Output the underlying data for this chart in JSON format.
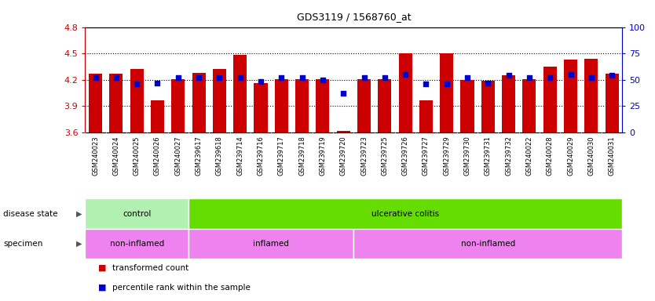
{
  "title": "GDS3119 / 1568760_at",
  "samples": [
    "GSM240023",
    "GSM240024",
    "GSM240025",
    "GSM240026",
    "GSM240027",
    "GSM239617",
    "GSM239618",
    "GSM239714",
    "GSM239716",
    "GSM239717",
    "GSM239718",
    "GSM239719",
    "GSM239720",
    "GSM239723",
    "GSM239725",
    "GSM239726",
    "GSM239727",
    "GSM239729",
    "GSM239730",
    "GSM239731",
    "GSM239732",
    "GSM240022",
    "GSM240028",
    "GSM240029",
    "GSM240030",
    "GSM240031"
  ],
  "bar_values": [
    4.27,
    4.27,
    4.32,
    3.97,
    4.21,
    4.28,
    4.32,
    4.48,
    4.16,
    4.21,
    4.21,
    4.21,
    3.62,
    4.21,
    4.21,
    4.5,
    3.97,
    4.5,
    4.2,
    4.19,
    4.25,
    4.21,
    4.35,
    4.43,
    4.44,
    4.27
  ],
  "percentile_values": [
    52,
    52,
    46,
    47,
    52,
    52,
    52,
    52,
    48,
    52,
    52,
    50,
    37,
    52,
    52,
    55,
    46,
    46,
    52,
    47,
    54,
    52,
    52,
    55,
    52,
    54
  ],
  "ylim_left": [
    3.6,
    4.8
  ],
  "ylim_right": [
    0,
    100
  ],
  "yticks_left": [
    3.6,
    3.9,
    4.2,
    4.5,
    4.8
  ],
  "yticks_right": [
    0,
    25,
    50,
    75,
    100
  ],
  "dotted_lines": [
    3.9,
    4.2,
    4.5
  ],
  "bar_color": "#cc0000",
  "dot_color": "#0000cc",
  "ds_groups": [
    {
      "label": "control",
      "start": 0,
      "end": 5,
      "color": "#b2f0b2"
    },
    {
      "label": "ulcerative colitis",
      "start": 5,
      "end": 26,
      "color": "#66dd00"
    }
  ],
  "spec_groups": [
    {
      "label": "non-inflamed",
      "start": 0,
      "end": 5,
      "color": "#ee82ee"
    },
    {
      "label": "inflamed",
      "start": 5,
      "end": 13,
      "color": "#ee82ee"
    },
    {
      "label": "non-inflamed",
      "start": 13,
      "end": 26,
      "color": "#ee82ee"
    }
  ],
  "plot_bg_color": "#ffffff",
  "left_tick_color": "#cc0000",
  "right_tick_color": "#0000cc",
  "xtick_bg_color": "#d8d8d8",
  "left_label": "disease state",
  "specimen_label": "specimen",
  "arrow_char": "▶",
  "legend": [
    {
      "label": "transformed count",
      "color": "#cc0000"
    },
    {
      "label": "percentile rank within the sample",
      "color": "#0000cc"
    }
  ]
}
